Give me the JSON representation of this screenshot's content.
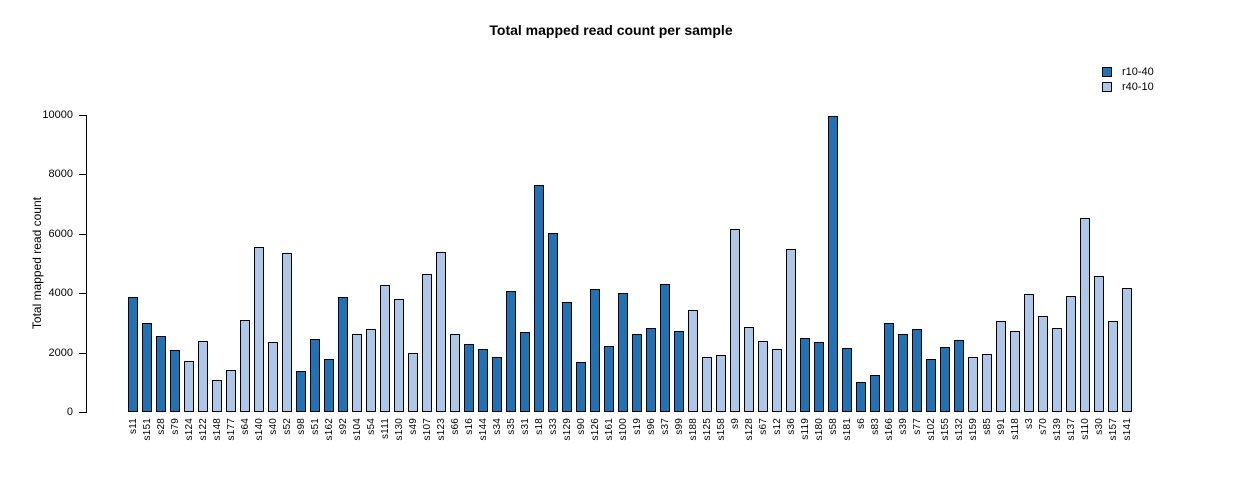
{
  "chart_data": {
    "type": "bar",
    "title": "Total mapped read count per sample",
    "xlabel": "",
    "ylabel": "Total mapped read count",
    "ylim": [
      0,
      10000
    ],
    "yticks": [
      0,
      2000,
      4000,
      6000,
      8000,
      10000
    ],
    "grid": false,
    "legend_position": "top-right",
    "legend": [
      {
        "name": "r10-40",
        "color": "#2171b5"
      },
      {
        "name": "r40-10",
        "color": "#aec7e8"
      }
    ],
    "samples": [
      {
        "id": "s11",
        "value": 3880,
        "series": "r10-40"
      },
      {
        "id": "s151",
        "value": 2980,
        "series": "r10-40"
      },
      {
        "id": "s28",
        "value": 2570,
        "series": "r10-40"
      },
      {
        "id": "s79",
        "value": 2100,
        "series": "r10-40"
      },
      {
        "id": "s124",
        "value": 1720,
        "series": "r40-10"
      },
      {
        "id": "s122",
        "value": 2400,
        "series": "r40-10"
      },
      {
        "id": "s148",
        "value": 1090,
        "series": "r40-10"
      },
      {
        "id": "s177",
        "value": 1430,
        "series": "r40-10"
      },
      {
        "id": "s64",
        "value": 3110,
        "series": "r40-10"
      },
      {
        "id": "s140",
        "value": 5560,
        "series": "r40-10"
      },
      {
        "id": "s40",
        "value": 2350,
        "series": "r40-10"
      },
      {
        "id": "s52",
        "value": 5350,
        "series": "r40-10"
      },
      {
        "id": "s98",
        "value": 1380,
        "series": "r10-40"
      },
      {
        "id": "s51",
        "value": 2450,
        "series": "r10-40"
      },
      {
        "id": "s162",
        "value": 1790,
        "series": "r10-40"
      },
      {
        "id": "s92",
        "value": 3860,
        "series": "r10-40"
      },
      {
        "id": "s104",
        "value": 2640,
        "series": "r40-10"
      },
      {
        "id": "s54",
        "value": 2800,
        "series": "r40-10"
      },
      {
        "id": "s111",
        "value": 4280,
        "series": "r40-10"
      },
      {
        "id": "s130",
        "value": 3810,
        "series": "r40-10"
      },
      {
        "id": "s49",
        "value": 2000,
        "series": "r40-10"
      },
      {
        "id": "s107",
        "value": 4650,
        "series": "r40-10"
      },
      {
        "id": "s123",
        "value": 5390,
        "series": "r40-10"
      },
      {
        "id": "s66",
        "value": 2640,
        "series": "r40-10"
      },
      {
        "id": "s16",
        "value": 2280,
        "series": "r10-40"
      },
      {
        "id": "s144",
        "value": 2110,
        "series": "r10-40"
      },
      {
        "id": "s34",
        "value": 1850,
        "series": "r10-40"
      },
      {
        "id": "s35",
        "value": 4090,
        "series": "r10-40"
      },
      {
        "id": "s31",
        "value": 2700,
        "series": "r10-40"
      },
      {
        "id": "s18",
        "value": 7650,
        "series": "r10-40"
      },
      {
        "id": "s33",
        "value": 6040,
        "series": "r10-40"
      },
      {
        "id": "s129",
        "value": 3720,
        "series": "r10-40"
      },
      {
        "id": "s90",
        "value": 1690,
        "series": "r10-40"
      },
      {
        "id": "s126",
        "value": 4130,
        "series": "r10-40"
      },
      {
        "id": "s161",
        "value": 2230,
        "series": "r10-40"
      },
      {
        "id": "s100",
        "value": 4000,
        "series": "r10-40"
      },
      {
        "id": "s19",
        "value": 2640,
        "series": "r10-40"
      },
      {
        "id": "s96",
        "value": 2840,
        "series": "r10-40"
      },
      {
        "id": "s37",
        "value": 4300,
        "series": "r10-40"
      },
      {
        "id": "s99",
        "value": 2740,
        "series": "r10-40"
      },
      {
        "id": "s188",
        "value": 3450,
        "series": "r40-10"
      },
      {
        "id": "s125",
        "value": 1850,
        "series": "r40-10"
      },
      {
        "id": "s158",
        "value": 1920,
        "series": "r40-10"
      },
      {
        "id": "s9",
        "value": 6170,
        "series": "r40-10"
      },
      {
        "id": "s128",
        "value": 2860,
        "series": "r40-10"
      },
      {
        "id": "s67",
        "value": 2390,
        "series": "r40-10"
      },
      {
        "id": "s12",
        "value": 2110,
        "series": "r40-10"
      },
      {
        "id": "s36",
        "value": 5490,
        "series": "r40-10"
      },
      {
        "id": "s119",
        "value": 2500,
        "series": "r10-40"
      },
      {
        "id": "s180",
        "value": 2360,
        "series": "r10-40"
      },
      {
        "id": "s58",
        "value": 9950,
        "series": "r10-40"
      },
      {
        "id": "s181",
        "value": 2160,
        "series": "r10-40"
      },
      {
        "id": "s6",
        "value": 1010,
        "series": "r10-40"
      },
      {
        "id": "s83",
        "value": 1260,
        "series": "r10-40"
      },
      {
        "id": "s166",
        "value": 2980,
        "series": "r10-40"
      },
      {
        "id": "s39",
        "value": 2620,
        "series": "r10-40"
      },
      {
        "id": "s77",
        "value": 2800,
        "series": "r10-40"
      },
      {
        "id": "s102",
        "value": 1770,
        "series": "r10-40"
      },
      {
        "id": "s155",
        "value": 2190,
        "series": "r10-40"
      },
      {
        "id": "s132",
        "value": 2430,
        "series": "r10-40"
      },
      {
        "id": "s159",
        "value": 1840,
        "series": "r40-10"
      },
      {
        "id": "s85",
        "value": 1950,
        "series": "r40-10"
      },
      {
        "id": "s91",
        "value": 3050,
        "series": "r40-10"
      },
      {
        "id": "s118",
        "value": 2720,
        "series": "r40-10"
      },
      {
        "id": "s3",
        "value": 3960,
        "series": "r40-10"
      },
      {
        "id": "s70",
        "value": 3240,
        "series": "r40-10"
      },
      {
        "id": "s139",
        "value": 2820,
        "series": "r40-10"
      },
      {
        "id": "s137",
        "value": 3920,
        "series": "r40-10"
      },
      {
        "id": "s110",
        "value": 6520,
        "series": "r40-10"
      },
      {
        "id": "s30",
        "value": 4590,
        "series": "r40-10"
      },
      {
        "id": "s157",
        "value": 3050,
        "series": "r40-10"
      },
      {
        "id": "s141",
        "value": 4170,
        "series": "r40-10"
      }
    ]
  }
}
